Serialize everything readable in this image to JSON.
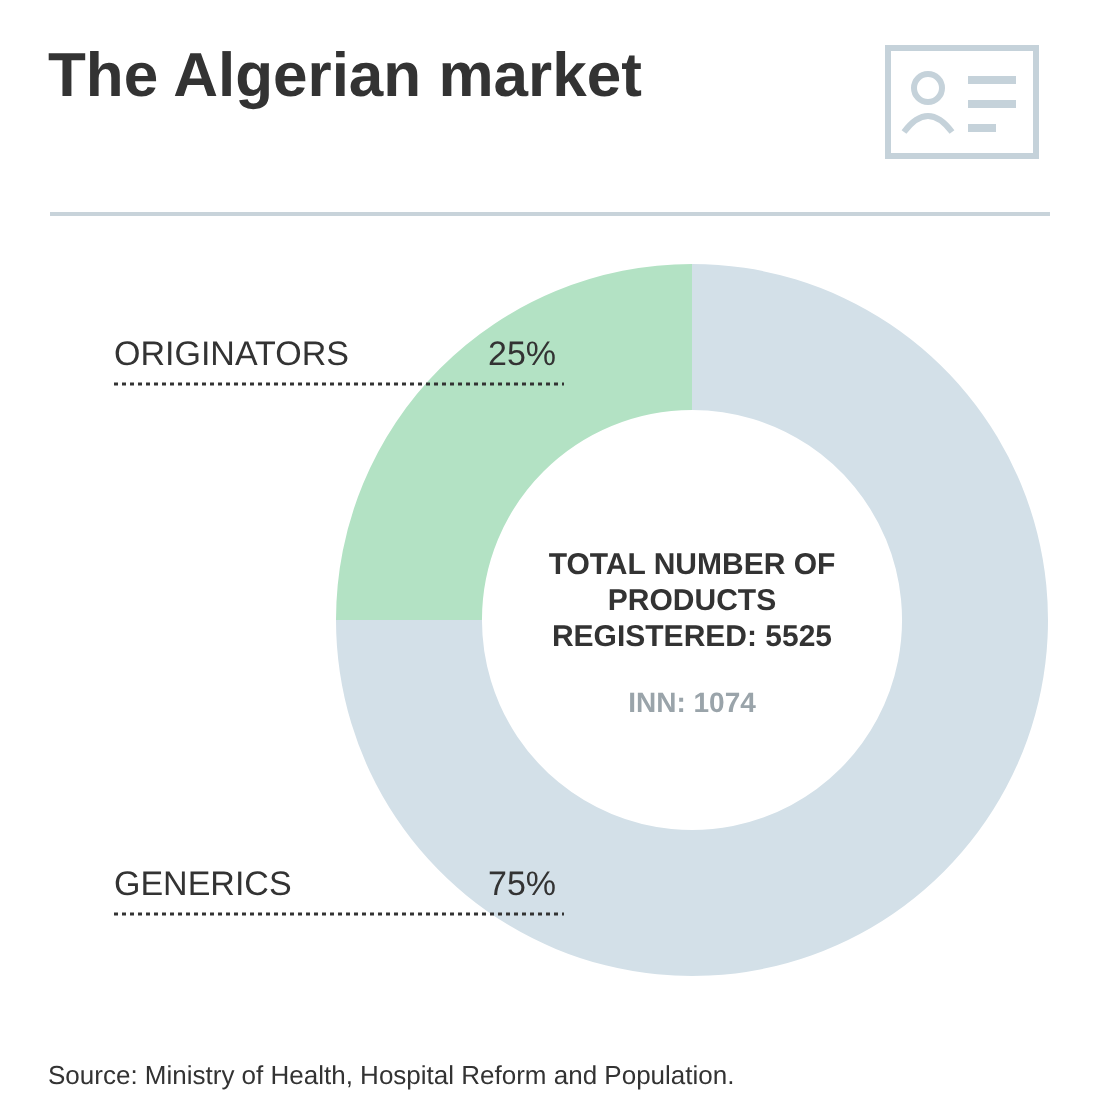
{
  "chart_data": {
    "type": "donut",
    "title": "The Algerian market",
    "categories": [
      "ORIGINATORS",
      "GENERICS"
    ],
    "values": [
      25,
      75
    ],
    "value_labels": [
      "25%",
      "75%"
    ],
    "colors": [
      "#b3e2c4",
      "#d3e0e8"
    ],
    "annotations": [
      "TOTAL NUMBER OF PRODUCTS REGISTERED: 5525",
      "INN: 1074",
      "Source: Ministry of Health, Hospital Reform and Population."
    ]
  }
}
